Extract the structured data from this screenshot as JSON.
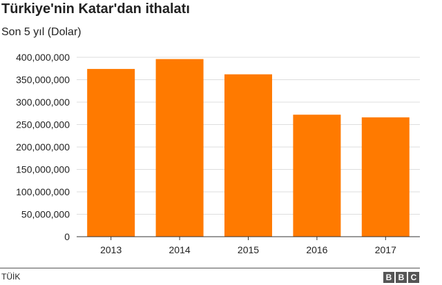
{
  "header": {
    "title": "Türkiye'nin Katar'dan ithalatı",
    "subtitle": "Son 5 yıl (Dolar)"
  },
  "footer": {
    "source": "TÜİK",
    "logo_letters": [
      "B",
      "B",
      "C"
    ]
  },
  "colors": {
    "bar": "#ff7a00",
    "grid": "#dddddd",
    "axis": "#333333"
  },
  "chart_data": {
    "type": "bar",
    "categories": [
      "2013",
      "2014",
      "2015",
      "2016",
      "2017"
    ],
    "values": [
      374000000,
      396000000,
      362000000,
      272000000,
      266000000
    ],
    "ylim": [
      0,
      400000000
    ],
    "yticks": [
      0,
      50000000,
      100000000,
      150000000,
      200000000,
      250000000,
      300000000,
      350000000,
      400000000
    ],
    "ytick_labels": [
      "0",
      "50,000,000",
      "100,000,000",
      "150,000,000",
      "200,000,000",
      "250,000,000",
      "300,000,000",
      "350,000,000",
      "400,000,000"
    ],
    "grid": true,
    "xlabel": "",
    "ylabel": ""
  }
}
